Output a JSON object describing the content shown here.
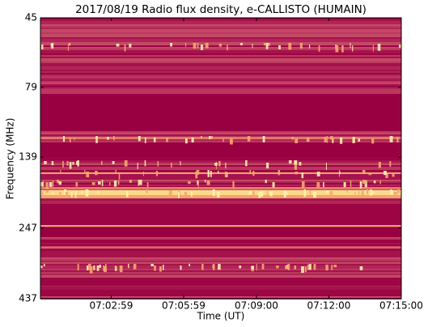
{
  "chart_data": {
    "type": "spectrogram",
    "title": "2017/08/19  Radio flux density, e-CALLISTO (HUMAIN)",
    "xlabel": "Time (UT)",
    "ylabel": "Frequency (MHz)",
    "xlim": [
      "07:00:03",
      "07:15:00"
    ],
    "xticks": [
      "07:02:59",
      "07:05:59",
      "07:09:00",
      "07:12:00",
      "07:15:00"
    ],
    "ylim": [
      45,
      437
    ],
    "yticks": [
      45,
      79,
      139,
      247,
      437
    ],
    "yscale": "log",
    "y_inverted": true
  }
}
